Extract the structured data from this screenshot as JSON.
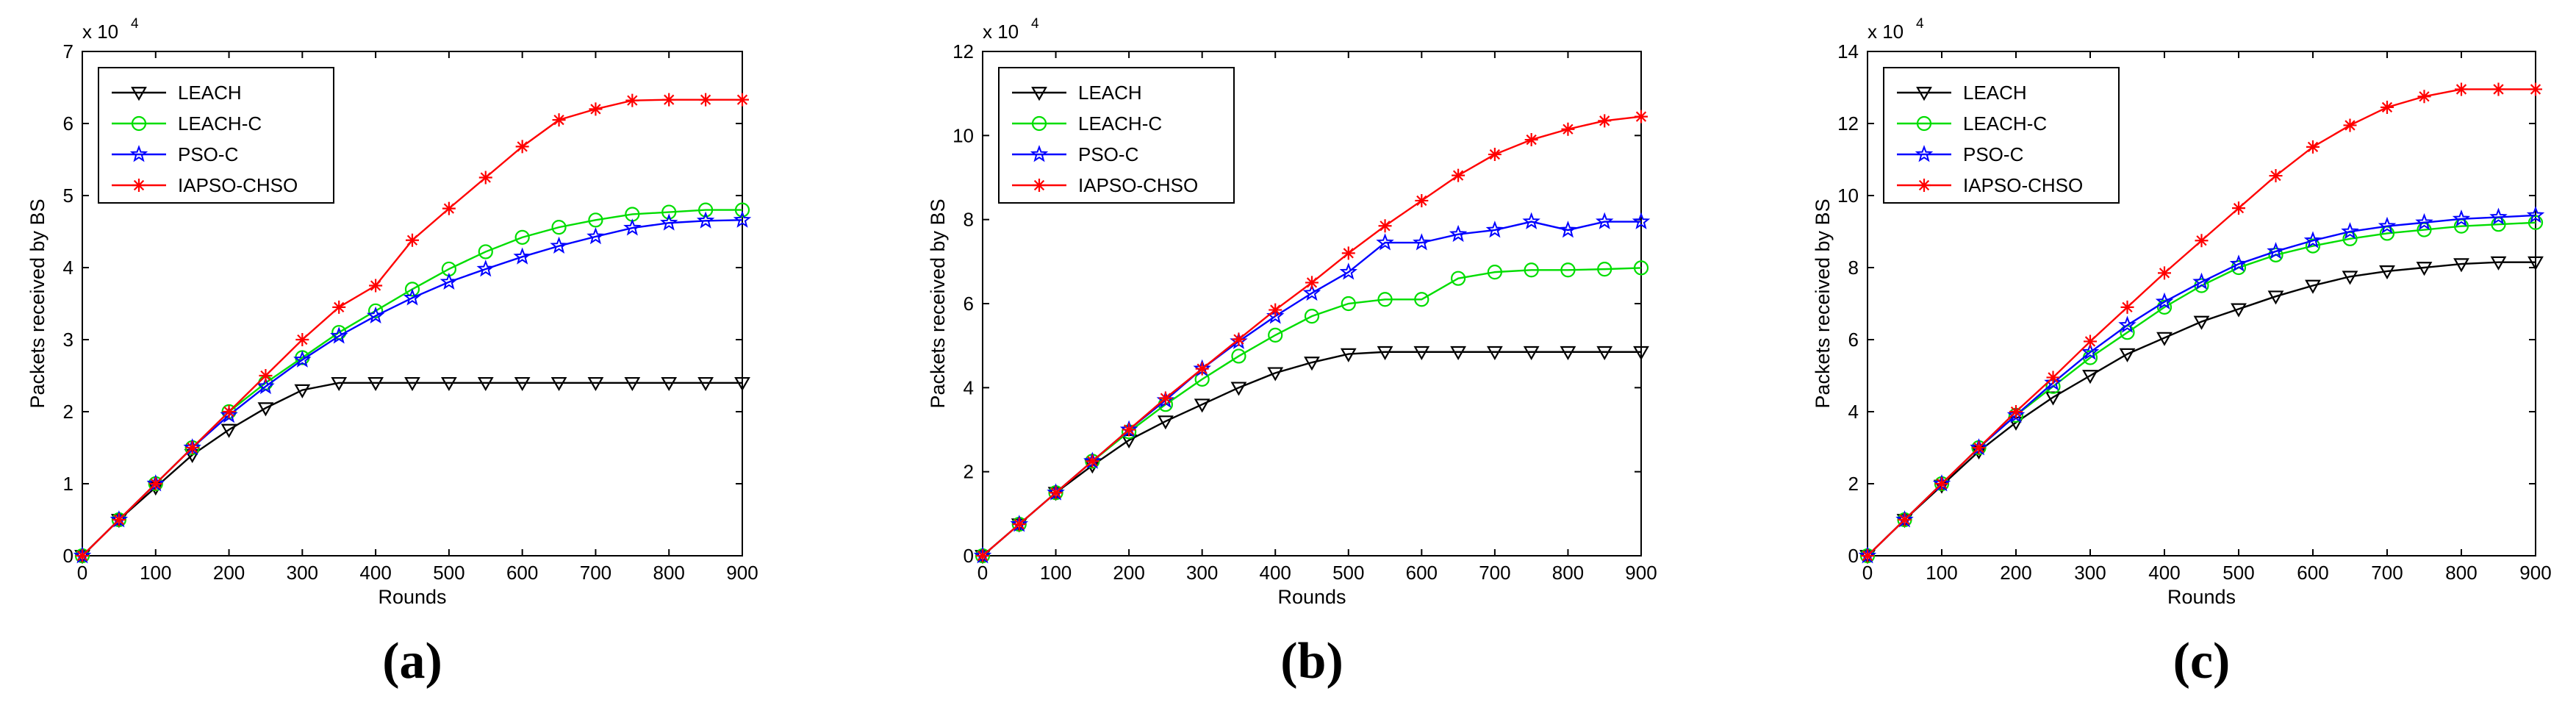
{
  "chart_data": [
    {
      "type": "line",
      "panel_label": "(a)",
      "xlabel": "Rounds",
      "ylabel": "Packets received by BS",
      "exponent_label": "x 10",
      "exponent_power": "4",
      "x_ticks": [
        "0",
        "100",
        "200",
        "300",
        "400",
        "500",
        "600",
        "700",
        "800",
        "900"
      ],
      "y_ticks": [
        "0",
        "1",
        "2",
        "3",
        "4",
        "5",
        "6",
        "7"
      ],
      "xlim": [
        0,
        900
      ],
      "ylim": [
        0,
        7
      ],
      "legend_position": "top-left",
      "x": [
        0,
        50,
        100,
        150,
        200,
        250,
        300,
        350,
        400,
        450,
        500,
        550,
        600,
        650,
        700,
        750,
        800,
        850,
        900
      ],
      "series": [
        {
          "name": "LEACH",
          "color": "#000000",
          "marker": "triangle-down",
          "values": [
            0,
            0.5,
            0.95,
            1.4,
            1.75,
            2.05,
            2.3,
            2.4,
            2.4,
            2.4,
            2.4,
            2.4,
            2.4,
            2.4,
            2.4,
            2.4,
            2.4,
            2.4,
            2.4
          ]
        },
        {
          "name": "LEACH-C",
          "color": "#00dd00",
          "marker": "circle",
          "values": [
            0,
            0.5,
            1.0,
            1.5,
            2.0,
            2.4,
            2.75,
            3.1,
            3.4,
            3.7,
            3.98,
            4.22,
            4.42,
            4.56,
            4.66,
            4.74,
            4.77,
            4.8,
            4.8
          ]
        },
        {
          "name": "PSO-C",
          "color": "#0000ff",
          "marker": "star",
          "values": [
            0,
            0.5,
            1.0,
            1.5,
            1.95,
            2.35,
            2.72,
            3.05,
            3.33,
            3.58,
            3.8,
            3.98,
            4.15,
            4.3,
            4.43,
            4.55,
            4.62,
            4.65,
            4.66
          ]
        },
        {
          "name": "IAPSO-CHSO",
          "color": "#ff0000",
          "marker": "asterisk",
          "values": [
            0,
            0.5,
            1.0,
            1.5,
            2.0,
            2.5,
            3.0,
            3.45,
            3.75,
            4.38,
            4.82,
            5.25,
            5.68,
            6.05,
            6.2,
            6.32,
            6.33,
            6.33,
            6.33
          ]
        }
      ]
    },
    {
      "type": "line",
      "panel_label": "(b)",
      "xlabel": "Rounds",
      "ylabel": "Packets received by BS",
      "exponent_label": "x 10",
      "exponent_power": "4",
      "x_ticks": [
        "0",
        "100",
        "200",
        "300",
        "400",
        "500",
        "600",
        "700",
        "800",
        "900"
      ],
      "y_ticks": [
        "0",
        "2",
        "4",
        "6",
        "8",
        "10",
        "12"
      ],
      "xlim": [
        0,
        900
      ],
      "ylim": [
        0,
        12
      ],
      "legend_position": "top-left",
      "x": [
        0,
        50,
        100,
        150,
        200,
        250,
        300,
        350,
        400,
        450,
        500,
        550,
        600,
        650,
        700,
        750,
        800,
        850,
        900
      ],
      "series": [
        {
          "name": "LEACH",
          "color": "#000000",
          "marker": "triangle-down",
          "values": [
            0,
            0.75,
            1.5,
            2.15,
            2.75,
            3.2,
            3.6,
            4.0,
            4.35,
            4.6,
            4.8,
            4.85,
            4.85,
            4.85,
            4.85,
            4.85,
            4.85,
            4.85,
            4.85
          ]
        },
        {
          "name": "LEACH-C",
          "color": "#00dd00",
          "marker": "circle",
          "values": [
            0,
            0.75,
            1.5,
            2.25,
            2.95,
            3.6,
            4.2,
            4.75,
            5.25,
            5.7,
            6.0,
            6.1,
            6.1,
            6.6,
            6.75,
            6.8,
            6.8,
            6.82,
            6.85
          ]
        },
        {
          "name": "PSO-C",
          "color": "#0000ff",
          "marker": "star",
          "values": [
            0,
            0.75,
            1.5,
            2.25,
            3.0,
            3.7,
            4.45,
            5.1,
            5.7,
            6.25,
            6.75,
            7.45,
            7.45,
            7.65,
            7.75,
            7.95,
            7.75,
            7.95,
            7.95
          ]
        },
        {
          "name": "IAPSO-CHSO",
          "color": "#ff0000",
          "marker": "asterisk",
          "values": [
            0,
            0.75,
            1.5,
            2.25,
            3.0,
            3.75,
            4.45,
            5.15,
            5.85,
            6.5,
            7.2,
            7.85,
            8.45,
            9.05,
            9.55,
            9.9,
            10.15,
            10.35,
            10.45
          ]
        }
      ]
    },
    {
      "type": "line",
      "panel_label": "(c)",
      "xlabel": "Rounds",
      "ylabel": "Packets received by BS",
      "exponent_label": "x 10",
      "exponent_power": "4",
      "x_ticks": [
        "0",
        "100",
        "200",
        "300",
        "400",
        "500",
        "600",
        "700",
        "800",
        "900"
      ],
      "y_ticks": [
        "0",
        "2",
        "4",
        "6",
        "8",
        "10",
        "12",
        "14"
      ],
      "xlim": [
        0,
        900
      ],
      "ylim": [
        0,
        14
      ],
      "legend_position": "top-left",
      "x": [
        0,
        50,
        100,
        150,
        200,
        250,
        300,
        350,
        400,
        450,
        500,
        550,
        600,
        650,
        700,
        750,
        800,
        850,
        900
      ],
      "series": [
        {
          "name": "LEACH",
          "color": "#000000",
          "marker": "triangle-down",
          "values": [
            0,
            1.0,
            1.95,
            2.9,
            3.7,
            4.4,
            5.0,
            5.6,
            6.05,
            6.5,
            6.85,
            7.2,
            7.5,
            7.75,
            7.9,
            8.0,
            8.1,
            8.15,
            8.15
          ]
        },
        {
          "name": "LEACH-C",
          "color": "#00dd00",
          "marker": "circle",
          "values": [
            0,
            1.0,
            2.0,
            3.0,
            3.9,
            4.7,
            5.5,
            6.2,
            6.9,
            7.5,
            8.0,
            8.35,
            8.6,
            8.8,
            8.95,
            9.05,
            9.15,
            9.2,
            9.25
          ]
        },
        {
          "name": "PSO-C",
          "color": "#0000ff",
          "marker": "star",
          "values": [
            0,
            1.0,
            2.0,
            3.0,
            3.9,
            4.8,
            5.65,
            6.4,
            7.05,
            7.6,
            8.1,
            8.45,
            8.75,
            9.0,
            9.15,
            9.25,
            9.35,
            9.4,
            9.45
          ]
        },
        {
          "name": "IAPSO-CHSO",
          "color": "#ff0000",
          "marker": "asterisk",
          "values": [
            0,
            1.0,
            2.0,
            3.0,
            4.0,
            4.95,
            5.95,
            6.9,
            7.85,
            8.75,
            9.65,
            10.55,
            11.35,
            11.95,
            12.45,
            12.75,
            12.95,
            12.95,
            12.95
          ]
        }
      ]
    }
  ]
}
